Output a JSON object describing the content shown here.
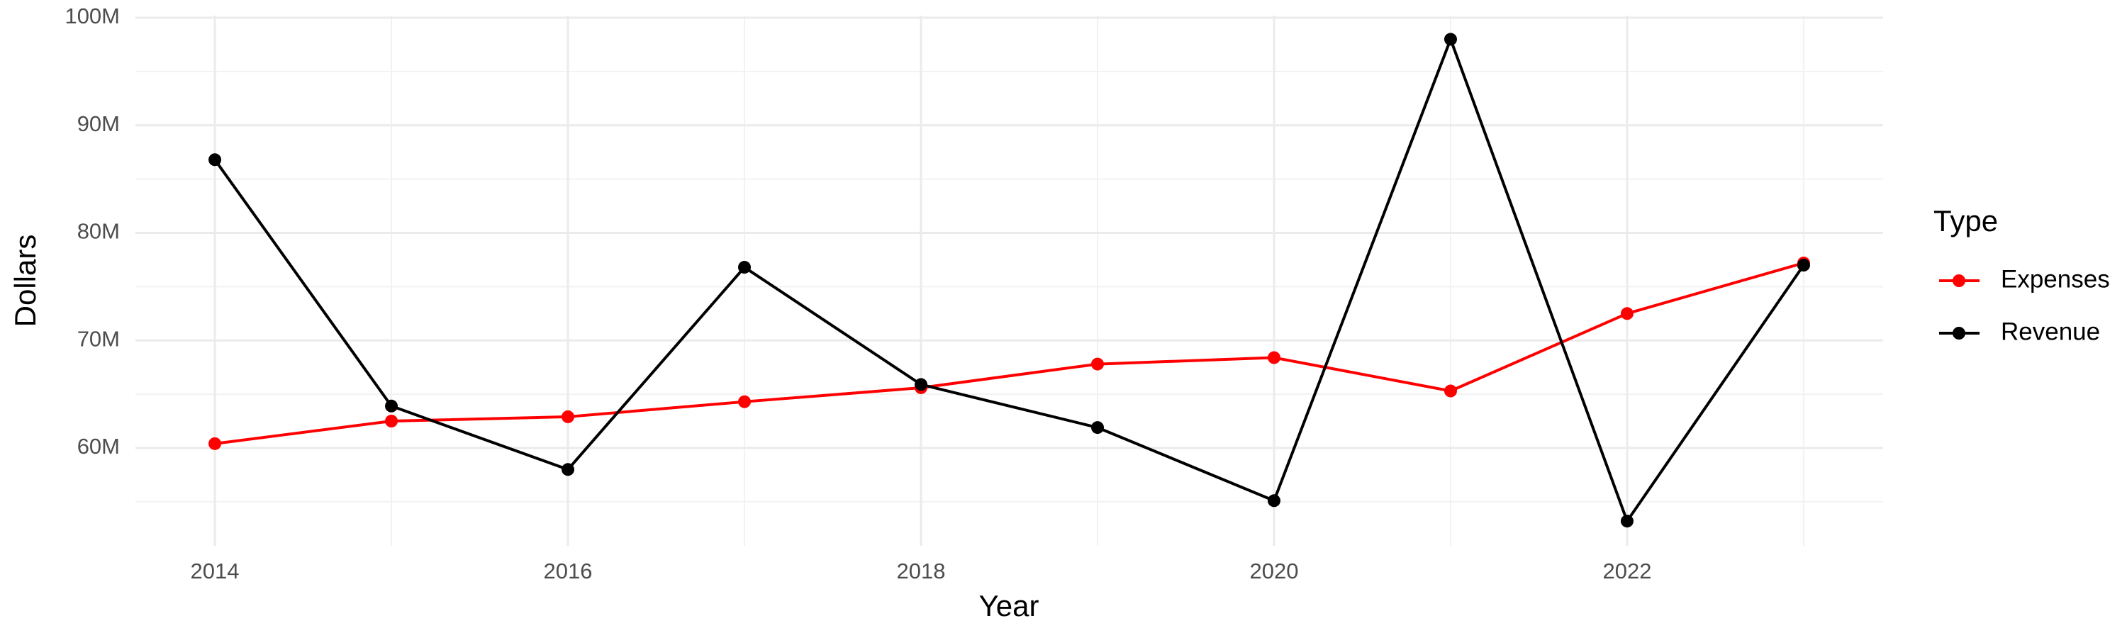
{
  "chart_data": {
    "type": "line",
    "x_label": "Year",
    "y_label": "Dollars",
    "legend_title": "Type",
    "x": [
      2014,
      2015,
      2016,
      2017,
      2018,
      2019,
      2020,
      2021,
      2022,
      2023
    ],
    "series": [
      {
        "name": "Expenses",
        "color": "#ff0000",
        "values": [
          60400000,
          62500000,
          62900000,
          64300000,
          65600000,
          67800000,
          68400000,
          65300000,
          72500000,
          77200000
        ]
      },
      {
        "name": "Revenue",
        "color": "#000000",
        "values": [
          86800000,
          63900000,
          58000000,
          76800000,
          65900000,
          61900000,
          55100000,
          98000000,
          53200000,
          77000000
        ]
      }
    ],
    "xlim": [
      2013.55,
      2023.45
    ],
    "xticks": [
      2014,
      2016,
      2018,
      2020,
      2022
    ],
    "ylim": [
      50900000,
      100200000
    ],
    "yticks": [
      {
        "value": 60000000,
        "label": "60M"
      },
      {
        "value": 70000000,
        "label": "70M"
      },
      {
        "value": 80000000,
        "label": "80M"
      },
      {
        "value": 90000000,
        "label": "90M"
      },
      {
        "value": 100000000,
        "label": "100M"
      }
    ],
    "grid": true,
    "legend_position": "right"
  }
}
